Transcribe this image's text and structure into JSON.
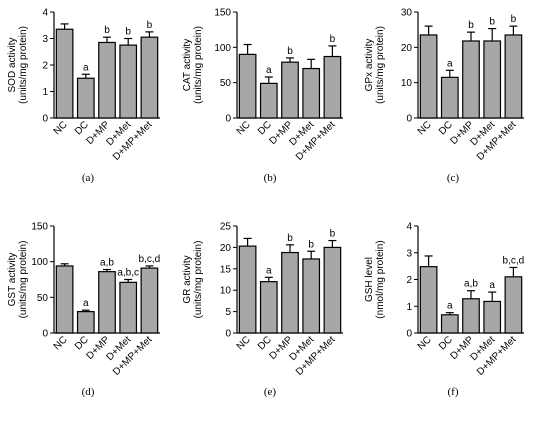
{
  "colors": {
    "bar_fill": "#a7a7a7",
    "bar_stroke": "#000000",
    "axis": "#000000"
  },
  "chart_data": [
    {
      "type": "bar",
      "caption": "(a)",
      "ylabel_lines": [
        "SOD activity",
        "(units/mg protein)"
      ],
      "ylim": [
        0,
        4
      ],
      "yticks": [
        0,
        1,
        2,
        3,
        4
      ],
      "categories": [
        "NC",
        "DC",
        "D+MP",
        "D+Met",
        "D+MP+Met"
      ],
      "values": [
        3.35,
        1.5,
        2.85,
        2.75,
        3.05
      ],
      "errors": [
        0.2,
        0.15,
        0.2,
        0.25,
        0.2
      ],
      "annotations": [
        "",
        "a",
        "b",
        "b",
        "b"
      ]
    },
    {
      "type": "bar",
      "caption": "(b)",
      "ylabel_lines": [
        "CAT activity",
        "(units/mg protein)"
      ],
      "ylim": [
        0,
        150
      ],
      "yticks": [
        0,
        50,
        100,
        150
      ],
      "categories": [
        "NC",
        "DC",
        "D+MP",
        "D+Met",
        "D+MP+Met"
      ],
      "values": [
        90,
        49,
        79,
        70,
        87
      ],
      "errors": [
        14,
        9,
        6,
        13,
        15
      ],
      "annotations": [
        "",
        "a",
        "b",
        "",
        "b"
      ]
    },
    {
      "type": "bar",
      "caption": "(c)",
      "ylabel_lines": [
        "GPx activity",
        "(units/mg protein)"
      ],
      "ylim": [
        0,
        30
      ],
      "yticks": [
        0,
        10,
        20,
        30
      ],
      "categories": [
        "NC",
        "DC",
        "D+MP",
        "D+Met",
        "D+MP+Met"
      ],
      "values": [
        23.5,
        11.5,
        21.8,
        21.8,
        23.5
      ],
      "errors": [
        2.5,
        2.0,
        2.5,
        3.5,
        2.5
      ],
      "annotations": [
        "",
        "a",
        "b",
        "b",
        "b"
      ]
    },
    {
      "type": "bar",
      "caption": "(d)",
      "ylabel_lines": [
        "GST activity",
        "(units/mg protein)"
      ],
      "ylim": [
        0,
        150
      ],
      "yticks": [
        0,
        50,
        100,
        150
      ],
      "categories": [
        "NC",
        "DC",
        "D+MP",
        "D+Met",
        "D+MP+Met"
      ],
      "values": [
        94,
        30,
        86,
        71,
        91
      ],
      "errors": [
        3,
        2,
        3,
        4,
        3
      ],
      "annotations": [
        "",
        "a",
        "a,b",
        "a,b,c",
        "b,c,d"
      ]
    },
    {
      "type": "bar",
      "caption": "(e)",
      "ylabel_lines": [
        "GR activity",
        "(units/mg protein)"
      ],
      "ylim": [
        0,
        25
      ],
      "yticks": [
        0,
        5,
        10,
        15,
        20,
        25
      ],
      "categories": [
        "NC",
        "DC",
        "D+MP",
        "D+Met",
        "D+MP+Met"
      ],
      "values": [
        20.3,
        12.0,
        18.8,
        17.3,
        20.0
      ],
      "errors": [
        1.8,
        1.0,
        1.8,
        1.8,
        1.6
      ],
      "annotations": [
        "",
        "a",
        "b",
        "b",
        "b"
      ]
    },
    {
      "type": "bar",
      "caption": "(f)",
      "ylabel_lines": [
        "GSH level",
        "(nmol/mg protein)"
      ],
      "ylim": [
        0,
        4
      ],
      "yticks": [
        0,
        1,
        2,
        3,
        4
      ],
      "categories": [
        "NC",
        "DC",
        "D+MP",
        "D+Met",
        "D+MP+Met"
      ],
      "values": [
        2.48,
        0.68,
        1.28,
        1.18,
        2.1
      ],
      "errors": [
        0.4,
        0.08,
        0.3,
        0.35,
        0.35
      ],
      "annotations": [
        "",
        "a",
        "a,b",
        "a",
        "b,c,d"
      ]
    }
  ]
}
